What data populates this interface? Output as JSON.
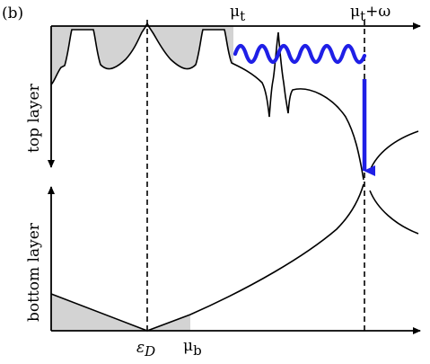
{
  "panel_label": "(b)",
  "labels": {
    "mu_t": "μ",
    "mu_t_sub": "t",
    "mu_t_omega_mu": "μ",
    "mu_t_omega_sub": "t",
    "mu_t_omega_tail": "+ω",
    "top_layer": "top layer",
    "bottom_layer": "bottom layer",
    "eps_d_main": "ε",
    "eps_d_sub": "D",
    "mu_b": "μ",
    "mu_b_sub": "b"
  },
  "colors": {
    "axis": "#000000",
    "curve": "#000000",
    "shaded": "#d3d3d3",
    "transition": "#1f1fe6"
  },
  "icons": {
    "axis_arrow": "arrow-head",
    "transition_wave": "wavy-arrow",
    "transition_down": "down-arrow"
  }
}
